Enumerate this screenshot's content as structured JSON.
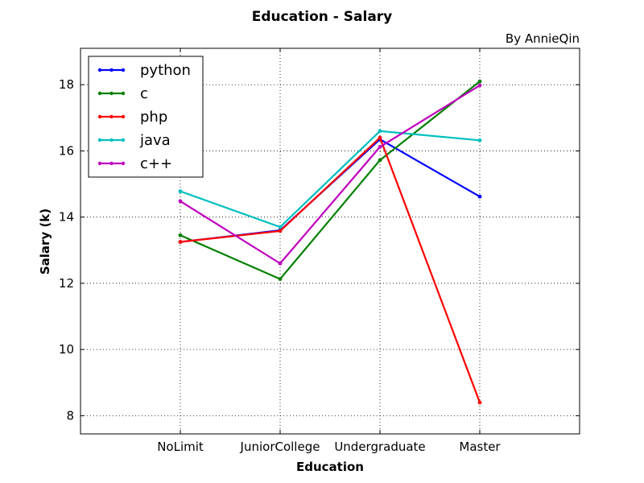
{
  "chart_data": {
    "type": "line",
    "title": "Education - Salary",
    "subtitle": "By AnnieQin",
    "xlabel": "Education",
    "ylabel": "Salary (k)",
    "categories": [
      "NoLimit",
      "JuniorCollege",
      "Undergraduate",
      "Master"
    ],
    "xlim": [
      -1,
      4
    ],
    "ylim": [
      7.45,
      19.1
    ],
    "yticks": [
      8,
      10,
      12,
      14,
      16,
      18
    ],
    "grid": true,
    "legend_position": "top-left",
    "series": [
      {
        "name": "python",
        "color": "#0000ff",
        "values": [
          13.25,
          13.6,
          16.35,
          14.62
        ]
      },
      {
        "name": "c",
        "color": "#008000",
        "values": [
          13.45,
          12.13,
          15.72,
          18.1
        ]
      },
      {
        "name": "php",
        "color": "#ff0000",
        "values": [
          13.25,
          13.58,
          16.4,
          8.4
        ]
      },
      {
        "name": "java",
        "color": "#00bfbf",
        "values": [
          14.78,
          13.7,
          16.6,
          16.32
        ]
      },
      {
        "name": "c++",
        "color": "#bf00bf",
        "values": [
          14.48,
          12.6,
          16.12,
          17.98
        ]
      }
    ]
  }
}
